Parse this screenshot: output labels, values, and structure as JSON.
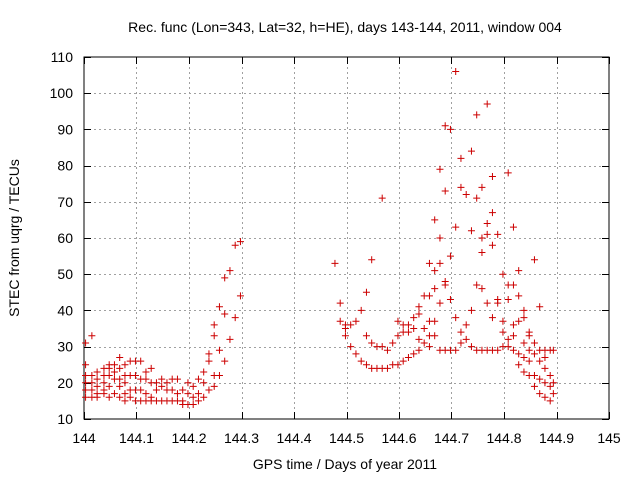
{
  "chart_data": {
    "type": "scatter",
    "title": "Rec. func (Lon=343, Lat=32, h=HE), days 143-144, 2011, window 004",
    "xlabel": "GPS time / Days of year 2011",
    "ylabel": "STEC from uqrg / TECUs",
    "xlim": [
      144,
      145
    ],
    "ylim": [
      10,
      110
    ],
    "xticks": [
      144,
      144.1,
      144.2,
      144.3,
      144.4,
      144.5,
      144.6,
      144.7,
      144.8,
      144.9,
      145
    ],
    "xtick_labels": [
      "144",
      "144.1",
      "144.2",
      "144.3",
      "144.4",
      "144.5",
      "144.6",
      "144.7",
      "144.8",
      "144.9",
      "145"
    ],
    "yticks": [
      10,
      20,
      30,
      40,
      50,
      60,
      70,
      80,
      90,
      100,
      110
    ],
    "ytick_labels": [
      "10",
      "20",
      "30",
      "40",
      "50",
      "60",
      "70",
      "80",
      "90",
      "100",
      "110"
    ],
    "grid": true,
    "marker": "+",
    "color": "#cc0000",
    "series": [
      {
        "name": "STEC",
        "points": [
          [
            144.003,
            31
          ],
          [
            144.003,
            25
          ],
          [
            144.003,
            22
          ],
          [
            144.003,
            20
          ],
          [
            144.003,
            18
          ],
          [
            144.003,
            16
          ],
          [
            144.015,
            33
          ],
          [
            144.015,
            22
          ],
          [
            144.015,
            20
          ],
          [
            144.015,
            18
          ],
          [
            144.015,
            16
          ],
          [
            144.025,
            23
          ],
          [
            144.025,
            21
          ],
          [
            144.025,
            19
          ],
          [
            144.025,
            17
          ],
          [
            144.025,
            16
          ],
          [
            144.038,
            24
          ],
          [
            144.038,
            22
          ],
          [
            144.038,
            20
          ],
          [
            144.038,
            18
          ],
          [
            144.038,
            17
          ],
          [
            144.048,
            25
          ],
          [
            144.048,
            24
          ],
          [
            144.048,
            22
          ],
          [
            144.048,
            19
          ],
          [
            144.048,
            16
          ],
          [
            144.058,
            25
          ],
          [
            144.058,
            23
          ],
          [
            144.058,
            21
          ],
          [
            144.058,
            17
          ],
          [
            144.068,
            27
          ],
          [
            144.068,
            24
          ],
          [
            144.068,
            21
          ],
          [
            144.068,
            19
          ],
          [
            144.068,
            16
          ],
          [
            144.078,
            25
          ],
          [
            144.078,
            22
          ],
          [
            144.078,
            20
          ],
          [
            144.078,
            17
          ],
          [
            144.078,
            15
          ],
          [
            144.088,
            26
          ],
          [
            144.088,
            22
          ],
          [
            144.088,
            18
          ],
          [
            144.088,
            16
          ],
          [
            144.098,
            26
          ],
          [
            144.098,
            22
          ],
          [
            144.098,
            18
          ],
          [
            144.098,
            15
          ],
          [
            144.108,
            26
          ],
          [
            144.108,
            21
          ],
          [
            144.108,
            18
          ],
          [
            144.108,
            15
          ],
          [
            144.118,
            23
          ],
          [
            144.118,
            21
          ],
          [
            144.118,
            17
          ],
          [
            144.118,
            15
          ],
          [
            144.128,
            24
          ],
          [
            144.128,
            20
          ],
          [
            144.128,
            16
          ],
          [
            144.128,
            15
          ],
          [
            144.138,
            20
          ],
          [
            144.138,
            18
          ],
          [
            144.138,
            15
          ],
          [
            144.148,
            21
          ],
          [
            144.148,
            19
          ],
          [
            144.148,
            15
          ],
          [
            144.158,
            20
          ],
          [
            144.158,
            18
          ],
          [
            144.158,
            15
          ],
          [
            144.168,
            21
          ],
          [
            144.168,
            18
          ],
          [
            144.168,
            15
          ],
          [
            144.178,
            21
          ],
          [
            144.178,
            17
          ],
          [
            144.178,
            15
          ],
          [
            144.188,
            18
          ],
          [
            144.188,
            15
          ],
          [
            144.188,
            14
          ],
          [
            144.198,
            20
          ],
          [
            144.198,
            17
          ],
          [
            144.198,
            14
          ],
          [
            144.208,
            19
          ],
          [
            144.208,
            16
          ],
          [
            144.208,
            14
          ],
          [
            144.218,
            21
          ],
          [
            144.218,
            17
          ],
          [
            144.218,
            15
          ],
          [
            144.228,
            23
          ],
          [
            144.228,
            20
          ],
          [
            144.228,
            16
          ],
          [
            144.238,
            28
          ],
          [
            144.238,
            26
          ],
          [
            144.238,
            18
          ],
          [
            144.248,
            36
          ],
          [
            144.248,
            33
          ],
          [
            144.248,
            22
          ],
          [
            144.248,
            19
          ],
          [
            144.258,
            41
          ],
          [
            144.258,
            29
          ],
          [
            144.258,
            22
          ],
          [
            144.268,
            49
          ],
          [
            144.268,
            39
          ],
          [
            144.268,
            26
          ],
          [
            144.278,
            51
          ],
          [
            144.278,
            32
          ],
          [
            144.288,
            58
          ],
          [
            144.288,
            38
          ],
          [
            144.298,
            59
          ],
          [
            144.298,
            44
          ],
          [
            144.478,
            53
          ],
          [
            144.488,
            42
          ],
          [
            144.488,
            37
          ],
          [
            144.498,
            36
          ],
          [
            144.498,
            35
          ],
          [
            144.498,
            33
          ],
          [
            144.508,
            36
          ],
          [
            144.508,
            30
          ],
          [
            144.518,
            37
          ],
          [
            144.518,
            28
          ],
          [
            144.528,
            40
          ],
          [
            144.528,
            26
          ],
          [
            144.538,
            45
          ],
          [
            144.538,
            33
          ],
          [
            144.538,
            25
          ],
          [
            144.548,
            54
          ],
          [
            144.548,
            31
          ],
          [
            144.548,
            24
          ],
          [
            144.558,
            30
          ],
          [
            144.558,
            24
          ],
          [
            144.568,
            71
          ],
          [
            144.568,
            30
          ],
          [
            144.568,
            24
          ],
          [
            144.578,
            29
          ],
          [
            144.578,
            24
          ],
          [
            144.588,
            31
          ],
          [
            144.588,
            25
          ],
          [
            144.598,
            37
          ],
          [
            144.598,
            33
          ],
          [
            144.598,
            25
          ],
          [
            144.608,
            36
          ],
          [
            144.608,
            34
          ],
          [
            144.608,
            26
          ],
          [
            144.618,
            36
          ],
          [
            144.618,
            34
          ],
          [
            144.618,
            27
          ],
          [
            144.628,
            38
          ],
          [
            144.628,
            35
          ],
          [
            144.628,
            28
          ],
          [
            144.638,
            41
          ],
          [
            144.638,
            39
          ],
          [
            144.638,
            32
          ],
          [
            144.638,
            29
          ],
          [
            144.648,
            44
          ],
          [
            144.648,
            35
          ],
          [
            144.648,
            31
          ],
          [
            144.658,
            53
          ],
          [
            144.658,
            44
          ],
          [
            144.658,
            37
          ],
          [
            144.658,
            33
          ],
          [
            144.658,
            30
          ],
          [
            144.668,
            65
          ],
          [
            144.668,
            51
          ],
          [
            144.668,
            46
          ],
          [
            144.668,
            37
          ],
          [
            144.668,
            33
          ],
          [
            144.678,
            79
          ],
          [
            144.678,
            60
          ],
          [
            144.678,
            53
          ],
          [
            144.678,
            42
          ],
          [
            144.678,
            29
          ],
          [
            144.688,
            91
          ],
          [
            144.688,
            73
          ],
          [
            144.688,
            48
          ],
          [
            144.688,
            47
          ],
          [
            144.688,
            29
          ],
          [
            144.698,
            90
          ],
          [
            144.698,
            55
          ],
          [
            144.698,
            43
          ],
          [
            144.698,
            29
          ],
          [
            144.708,
            106
          ],
          [
            144.708,
            63
          ],
          [
            144.708,
            38
          ],
          [
            144.708,
            29
          ],
          [
            144.718,
            82
          ],
          [
            144.718,
            74
          ],
          [
            144.718,
            34
          ],
          [
            144.718,
            31
          ],
          [
            144.728,
            72
          ],
          [
            144.728,
            36
          ],
          [
            144.728,
            32
          ],
          [
            144.738,
            84
          ],
          [
            144.738,
            62
          ],
          [
            144.738,
            40
          ],
          [
            144.738,
            30
          ],
          [
            144.748,
            94
          ],
          [
            144.748,
            71
          ],
          [
            144.748,
            47
          ],
          [
            144.748,
            29
          ],
          [
            144.758,
            74
          ],
          [
            144.758,
            60
          ],
          [
            144.758,
            56
          ],
          [
            144.758,
            46
          ],
          [
            144.758,
            29
          ],
          [
            144.768,
            97
          ],
          [
            144.768,
            64
          ],
          [
            144.768,
            61
          ],
          [
            144.768,
            42
          ],
          [
            144.768,
            29
          ],
          [
            144.778,
            77
          ],
          [
            144.778,
            67
          ],
          [
            144.778,
            58
          ],
          [
            144.778,
            38
          ],
          [
            144.778,
            29
          ],
          [
            144.788,
            61
          ],
          [
            144.788,
            43
          ],
          [
            144.788,
            42
          ],
          [
            144.788,
            29
          ],
          [
            144.798,
            50
          ],
          [
            144.798,
            37
          ],
          [
            144.798,
            34
          ],
          [
            144.798,
            30
          ],
          [
            144.808,
            78
          ],
          [
            144.808,
            47
          ],
          [
            144.808,
            43
          ],
          [
            144.808,
            32
          ],
          [
            144.808,
            30
          ],
          [
            144.818,
            63
          ],
          [
            144.818,
            47
          ],
          [
            144.818,
            36
          ],
          [
            144.818,
            33
          ],
          [
            144.818,
            29
          ],
          [
            144.828,
            51
          ],
          [
            144.828,
            44
          ],
          [
            144.828,
            37
          ],
          [
            144.828,
            28
          ],
          [
            144.828,
            25
          ],
          [
            144.838,
            40
          ],
          [
            144.838,
            38
          ],
          [
            144.838,
            31
          ],
          [
            144.838,
            27
          ],
          [
            144.838,
            23
          ],
          [
            144.848,
            34
          ],
          [
            144.848,
            33
          ],
          [
            144.848,
            29
          ],
          [
            144.848,
            26
          ],
          [
            144.848,
            22
          ],
          [
            144.858,
            54
          ],
          [
            144.858,
            31
          ],
          [
            144.858,
            28
          ],
          [
            144.858,
            22
          ],
          [
            144.858,
            19
          ],
          [
            144.868,
            41
          ],
          [
            144.868,
            29
          ],
          [
            144.868,
            26
          ],
          [
            144.868,
            21
          ],
          [
            144.868,
            17
          ],
          [
            144.878,
            29
          ],
          [
            144.878,
            27
          ],
          [
            144.878,
            24
          ],
          [
            144.878,
            20
          ],
          [
            144.878,
            16
          ],
          [
            144.888,
            29
          ],
          [
            144.888,
            22
          ],
          [
            144.888,
            19
          ],
          [
            144.888,
            15
          ],
          [
            144.894,
            29
          ],
          [
            144.894,
            20
          ],
          [
            144.894,
            17
          ]
        ]
      }
    ]
  }
}
